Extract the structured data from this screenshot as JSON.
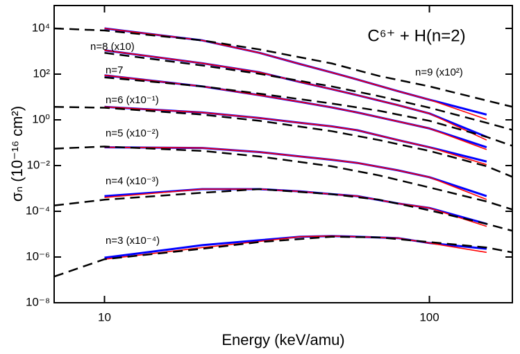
{
  "chart_data": {
    "type": "line",
    "title": "C⁶⁺ + H(n=2)",
    "x_label": "Energy (keV/amu)",
    "y_label": "σₙ (10⁻¹⁶ cm²)",
    "xscale": "log",
    "yscale": "log",
    "xlim": [
      7,
      180
    ],
    "ylim": [
      1e-08,
      100000
    ],
    "xticks": [
      10,
      100
    ],
    "yticks": [
      {
        "value": 1e-08,
        "label": "10⁻⁸"
      },
      {
        "value": 1e-06,
        "label": "10⁻⁶"
      },
      {
        "value": 0.0001,
        "label": "10⁻⁴"
      },
      {
        "value": 0.01,
        "label": "10⁻²"
      },
      {
        "value": 1,
        "label": "10⁰"
      },
      {
        "value": 100,
        "label": "10²"
      },
      {
        "value": 10000,
        "label": "10⁴"
      }
    ],
    "annotations": [
      "n=8 (x10)",
      "n=7",
      "n=6 (x10⁻¹)",
      "n=5 (x10⁻²)",
      "n=4 (x10⁻³)",
      "n=3 (x10⁻⁴)",
      "n=9 (x10²)"
    ],
    "series": [
      {
        "color": "#0000ff",
        "style": "solid",
        "x": [
          10,
          20,
          30,
          40,
          50,
          60,
          80,
          100,
          150
        ],
        "values": [
          10000,
          3000,
          850,
          275,
          118,
          58,
          18,
          7.6,
          1.7
        ]
      },
      {
        "color": "#ff0000",
        "style": "solid",
        "x": [
          10,
          20,
          30,
          40,
          50,
          60,
          80,
          100,
          150
        ],
        "values": [
          10000,
          3000,
          850,
          275,
          118,
          58,
          18,
          7.6,
          1.05
        ]
      },
      {
        "color": "#000000",
        "style": "dashed",
        "x": [
          7,
          10,
          20,
          30,
          50,
          70,
          100,
          150,
          180
        ],
        "values": [
          10000,
          8100,
          3000,
          1200,
          295,
          83,
          29,
          7,
          3.7
        ]
      },
      {
        "color": "#0000ff",
        "style": "solid",
        "x": [
          10,
          20,
          30,
          40,
          50,
          60,
          80,
          100,
          150
        ],
        "values": [
          1100,
          300,
          120,
          45,
          22,
          12,
          4.4,
          1.9,
          0.18
        ]
      },
      {
        "color": "#ff0000",
        "style": "solid",
        "x": [
          10,
          20,
          30,
          40,
          50,
          60,
          80,
          100,
          150
        ],
        "values": [
          1100,
          300,
          120,
          45,
          22,
          12,
          4.4,
          1.9,
          0.13
        ]
      },
      {
        "color": "#000000",
        "style": "dashed",
        "x": [
          10,
          20,
          30,
          50,
          70,
          100,
          150,
          180
        ],
        "values": [
          850,
          240,
          103,
          29,
          10.9,
          3.4,
          0.74,
          0.36
        ]
      },
      {
        "color": "#0000ff",
        "style": "solid",
        "x": [
          10,
          20,
          30,
          40,
          50,
          60,
          80,
          100,
          150
        ],
        "values": [
          89,
          29,
          12,
          6.1,
          3.5,
          2.1,
          0.85,
          0.42,
          0.063
        ]
      },
      {
        "color": "#ff0000",
        "style": "solid",
        "x": [
          10,
          20,
          30,
          40,
          50,
          60,
          80,
          100,
          150
        ],
        "values": [
          89,
          29,
          12,
          6.1,
          3.5,
          2.1,
          0.85,
          0.42,
          0.05
        ]
      },
      {
        "color": "#000000",
        "style": "dashed",
        "x": [
          10,
          20,
          30,
          50,
          70,
          100,
          150,
          180
        ],
        "values": [
          72,
          29,
          14,
          5.2,
          2.5,
          0.91,
          0.18,
          0.073
        ]
      },
      {
        "color": "#0000ff",
        "style": "solid",
        "x": [
          10,
          20,
          30,
          40,
          50,
          60,
          80,
          100,
          150
        ],
        "values": [
          3.7,
          2.1,
          1.2,
          0.74,
          0.52,
          0.35,
          0.13,
          0.063,
          0.015
        ]
      },
      {
        "color": "#ff0000",
        "style": "solid",
        "x": [
          10,
          20,
          30,
          40,
          50,
          60,
          80,
          100,
          150
        ],
        "values": [
          3.7,
          2.1,
          1.2,
          0.74,
          0.52,
          0.35,
          0.13,
          0.063,
          0.011
        ]
      },
      {
        "color": "#000000",
        "style": "dashed",
        "x": [
          7,
          10,
          20,
          30,
          50,
          70,
          100,
          150,
          180
        ],
        "values": [
          3.7,
          3.4,
          1.7,
          0.91,
          0.32,
          0.13,
          0.044,
          0.0093,
          0.0032
        ]
      },
      {
        "color": "#0000ff",
        "style": "solid",
        "x": [
          10,
          20,
          30,
          40,
          50,
          60,
          80,
          100,
          150
        ],
        "values": [
          0.063,
          0.059,
          0.039,
          0.025,
          0.018,
          0.013,
          0.0062,
          0.0031,
          0.00046
        ]
      },
      {
        "color": "#ff0000",
        "style": "solid",
        "x": [
          10,
          20,
          30,
          40,
          50,
          60,
          80,
          100,
          150
        ],
        "values": [
          0.063,
          0.059,
          0.039,
          0.025,
          0.018,
          0.013,
          0.0062,
          0.0031,
          0.00033
        ]
      },
      {
        "color": "#000000",
        "style": "dashed",
        "x": [
          7,
          10,
          20,
          30,
          50,
          70,
          100,
          150,
          180
        ],
        "values": [
          0.055,
          0.068,
          0.044,
          0.025,
          0.0093,
          0.0037,
          0.0011,
          0.00027,
          0.00012
        ]
      },
      {
        "color": "#0000ff",
        "style": "solid",
        "x": [
          10,
          20,
          30,
          40,
          50,
          60,
          80,
          100,
          150
        ],
        "values": [
          0.00046,
          0.00093,
          0.00093,
          0.00074,
          0.00056,
          0.00046,
          0.00022,
          0.00014,
          2.8e-05
        ]
      },
      {
        "color": "#ff0000",
        "style": "solid",
        "x": [
          10,
          20,
          30,
          40,
          50,
          60,
          80,
          100,
          150
        ],
        "values": [
          0.0004,
          0.00093,
          0.00093,
          0.00074,
          0.00056,
          0.00046,
          0.00022,
          0.00014,
          2.2e-05
        ]
      },
      {
        "color": "#000000",
        "style": "dashed",
        "x": [
          7,
          10,
          20,
          30,
          50,
          70,
          100,
          150,
          180
        ],
        "values": [
          0.00018,
          0.00032,
          0.00065,
          0.00093,
          0.00056,
          0.00032,
          0.00011,
          2.8e-05,
          1.4e-05
        ]
      },
      {
        "color": "#0000ff",
        "style": "solid",
        "x": [
          10,
          20,
          30,
          40,
          50,
          60,
          80,
          100,
          150
        ],
        "values": [
          9.3e-07,
          3.3e-06,
          5.4e-06,
          7.7e-06,
          8.3e-06,
          7.7e-06,
          6.7e-06,
          4.1e-06,
          2.3e-06
        ]
      },
      {
        "color": "#ff0000",
        "style": "solid",
        "x": [
          10,
          20,
          30,
          40,
          50,
          60,
          80,
          100,
          150
        ],
        "values": [
          8e-07,
          2.6e-06,
          4.8e-06,
          7.7e-06,
          8.3e-06,
          7.7e-06,
          6.7e-06,
          4.1e-06,
          1.6e-06
        ]
      },
      {
        "color": "#000000",
        "style": "dashed",
        "x": [
          7,
          10,
          20,
          30,
          50,
          70,
          100,
          150,
          180
        ],
        "values": [
          1.4e-07,
          8e-07,
          2.3e-06,
          4.5e-06,
          7.7e-06,
          7.2e-06,
          4.5e-06,
          2.6e-06,
          1.6e-06
        ]
      }
    ]
  }
}
